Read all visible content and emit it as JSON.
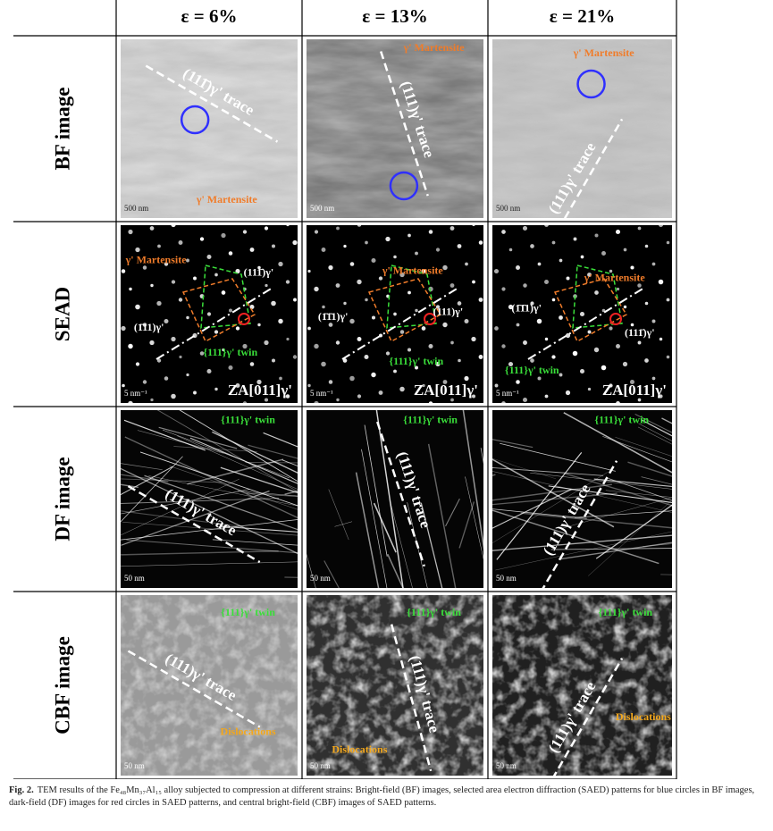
{
  "columns": [
    "ε = 6%",
    "ε = 13%",
    "ε = 21%"
  ],
  "rows": [
    {
      "label": "BF image",
      "panels": [
        {
          "labels": [
            {
              "text": "(111̄)γ' trace",
              "color": "#ffffff"
            },
            {
              "text": "γ' Martensite",
              "color": "#f07c2a"
            }
          ],
          "scale_bar": "500 nm"
        },
        {
          "labels": [
            {
              "text": "(111)γ' trace",
              "color": "#ffffff"
            },
            {
              "text": "γ' Martensite",
              "color": "#f07c2a"
            }
          ],
          "scale_bar": "500 nm"
        },
        {
          "labels": [
            {
              "text": "(111)γ' trace",
              "color": "#ffffff"
            },
            {
              "text": "γ' Martensite",
              "color": "#f07c2a"
            }
          ],
          "scale_bar": "500 nm"
        }
      ]
    },
    {
      "label": "SEAD",
      "panels": [
        {
          "labels": [
            {
              "text": "γ' Martensite",
              "color": "#f07c2a"
            },
            {
              "text": "(111̄)γ'",
              "color": "#ffffff"
            },
            {
              "text": "(1̄11)γ'",
              "color": "#ffffff"
            },
            {
              "text": "{111}γ' twin",
              "color": "#3adf3a"
            }
          ],
          "scale_bar": "5 nm⁻¹",
          "zone_axis": "ZA[011]γ'"
        },
        {
          "labels": [
            {
              "text": "γ' Martensite",
              "color": "#f07c2a"
            },
            {
              "text": "(1̄1̄1)γ'",
              "color": "#ffffff"
            },
            {
              "text": "(111)γ'",
              "color": "#ffffff"
            },
            {
              "text": "{111}γ' twin",
              "color": "#3adf3a"
            }
          ],
          "scale_bar": "5 nm⁻¹",
          "zone_axis": "ZA[011]γ'"
        },
        {
          "labels": [
            {
              "text": "γ' Martensite",
              "color": "#f07c2a"
            },
            {
              "text": "(1̄1̄1)γ'",
              "color": "#ffffff"
            },
            {
              "text": "(111̄)γ'",
              "color": "#ffffff"
            },
            {
              "text": "{111}γ' twin",
              "color": "#3adf3a"
            }
          ],
          "scale_bar": "5 nm⁻¹",
          "zone_axis": "ZA[011]γ'"
        }
      ]
    },
    {
      "label": "DF image",
      "panels": [
        {
          "labels": [
            {
              "text": "{111}γ' twin",
              "color": "#3adf3a"
            },
            {
              "text": "(111)γ' trace",
              "color": "#ffffff"
            }
          ],
          "scale_bar": "50 nm"
        },
        {
          "labels": [
            {
              "text": "{111}γ' twin",
              "color": "#3adf3a"
            },
            {
              "text": "(111)γ' trace",
              "color": "#ffffff"
            }
          ],
          "scale_bar": "50 nm"
        },
        {
          "labels": [
            {
              "text": "{111}γ' twin",
              "color": "#3adf3a"
            },
            {
              "text": "(111)γ' trace",
              "color": "#ffffff"
            }
          ],
          "scale_bar": "50 nm"
        }
      ]
    },
    {
      "label": "CBF image",
      "panels": [
        {
          "labels": [
            {
              "text": "{111}γ' twin",
              "color": "#3adf3a"
            },
            {
              "text": "(111)γ' trace",
              "color": "#ffffff"
            },
            {
              "text": "Dislocations",
              "color": "#f4a81c"
            }
          ],
          "scale_bar": "50 nm"
        },
        {
          "labels": [
            {
              "text": "{111}γ' twin",
              "color": "#3adf3a"
            },
            {
              "text": "(111)γ' trace",
              "color": "#ffffff"
            },
            {
              "text": "Dislocations",
              "color": "#f4a81c"
            }
          ],
          "scale_bar": "50 nm"
        },
        {
          "labels": [
            {
              "text": "{111}γ' twin",
              "color": "#3adf3a"
            },
            {
              "text": "(111)γ' trace",
              "color": "#ffffff"
            },
            {
              "text": "Dislocations",
              "color": "#f4a81c"
            }
          ],
          "scale_bar": "50 nm"
        }
      ]
    }
  ],
  "caption": {
    "label": "Fig. 2.",
    "text": "TEM results of the Fe₄₈Mn₃₇Al₁₅ alloy subjected to compression at different strains: Bright-field (BF) images, selected area electron diffraction (SAED) patterns for blue circles in BF images, dark-field (DF) images for red circles in SAED patterns, and central bright-field (CBF) images of SAED patterns."
  }
}
